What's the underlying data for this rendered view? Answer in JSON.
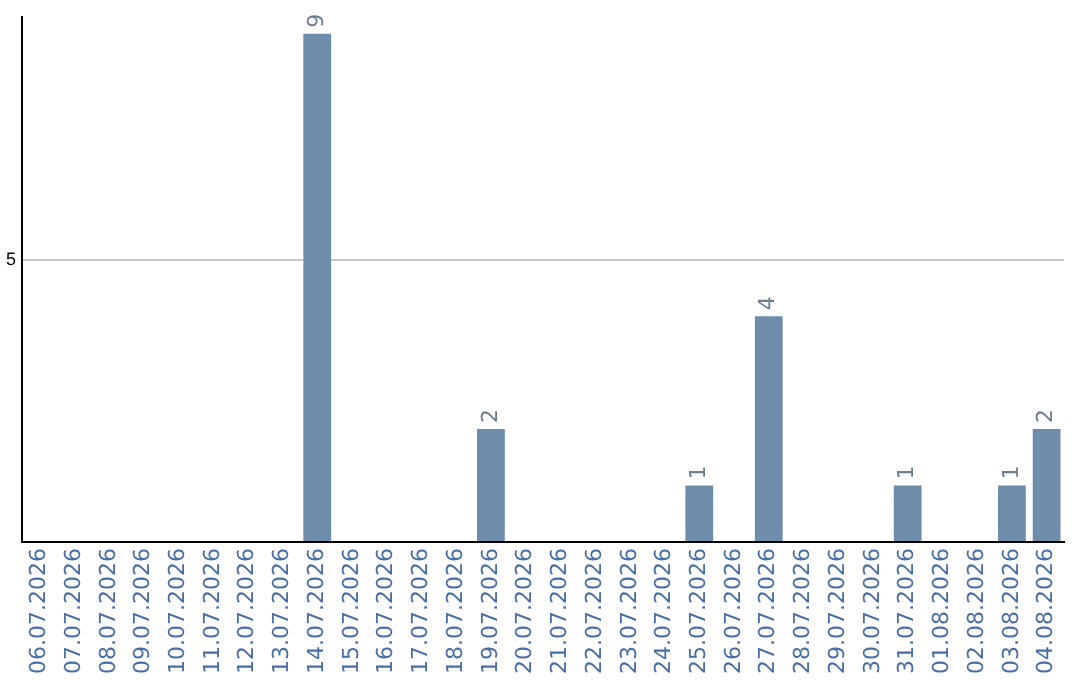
{
  "chart_data": {
    "type": "bar",
    "categories": [
      "06.07.2026",
      "07.07.2026",
      "08.07.2026",
      "09.07.2026",
      "10.07.2026",
      "11.07.2026",
      "12.07.2026",
      "13.07.2026",
      "14.07.2026",
      "15.07.2026",
      "16.07.2026",
      "17.07.2026",
      "18.07.2026",
      "19.07.2026",
      "20.07.2026",
      "21.07.2026",
      "22.07.2026",
      "23.07.2026",
      "24.07.2026",
      "25.07.2026",
      "26.07.2026",
      "27.07.2026",
      "28.07.2026",
      "29.07.2026",
      "30.07.2026",
      "31.07.2026",
      "01.08.2026",
      "02.08.2026",
      "03.08.2026",
      "04.08.2026"
    ],
    "values": [
      0,
      0,
      0,
      0,
      0,
      0,
      0,
      0,
      9,
      0,
      0,
      0,
      0,
      2,
      0,
      0,
      0,
      0,
      0,
      1,
      0,
      4,
      0,
      0,
      0,
      1,
      0,
      0,
      1,
      2
    ],
    "value_labels": [
      null,
      null,
      null,
      null,
      null,
      null,
      null,
      null,
      "9",
      null,
      null,
      null,
      null,
      "2",
      null,
      null,
      null,
      null,
      null,
      "1",
      null,
      "4",
      null,
      null,
      null,
      "1",
      null,
      null,
      "1",
      "2"
    ],
    "color": "#6e8daa",
    "ylim": [
      0,
      9.3
    ],
    "yticks": [
      {
        "value": 0,
        "label": null
      },
      5
    ],
    "grid": "y",
    "legend": false
  }
}
